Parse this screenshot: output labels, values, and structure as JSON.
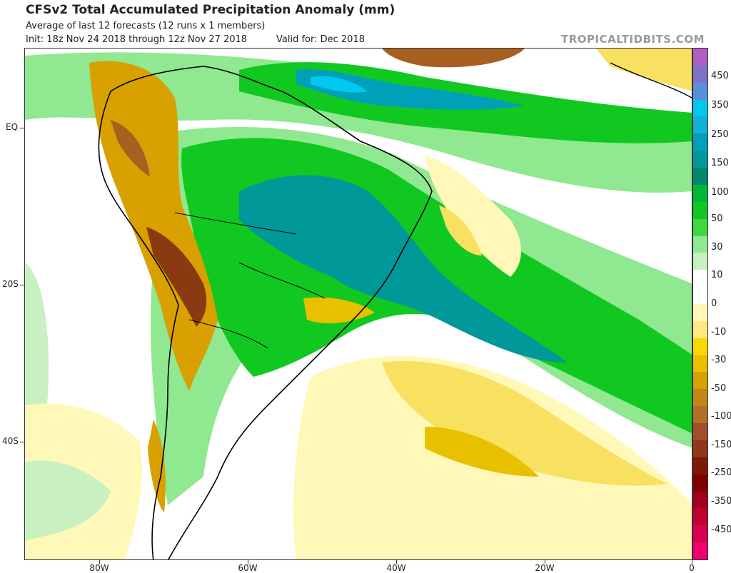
{
  "header": {
    "title": "CFSv2 Total Accumulated Precipitation Anomaly (mm)",
    "subtitle": "Average of last 12 forecasts (12 runs x 1 members)",
    "init": "Init: 18z Nov 24 2018 through 12z Nov 27 2018",
    "valid": "Valid for: Dec 2018",
    "brand": "TROPICALTIDBITS.COM"
  },
  "axes": {
    "y_labels": [
      "EQ",
      "20S",
      "40S"
    ],
    "x_labels": [
      "80W",
      "60W",
      "40W",
      "20W",
      "0"
    ]
  },
  "colorbar": {
    "labels": [
      "450",
      "350",
      "250",
      "150",
      "100",
      "50",
      "30",
      "10",
      "0",
      "-10",
      "-30",
      "-50",
      "-100",
      "-150",
      "-250",
      "-350",
      "-450"
    ],
    "colors": [
      "#b060c0",
      "#8070c8",
      "#5a90d8",
      "#00c8f0",
      "#10b0d8",
      "#00a0b8",
      "#009898",
      "#008870",
      "#00b838",
      "#10c820",
      "#40d840",
      "#90e890",
      "#c8f0c0",
      "#ffffff",
      "#ffffff",
      "#fff8b8",
      "#ffe880",
      "#f8d800",
      "#e8c000",
      "#d8a000",
      "#c08818",
      "#b07028",
      "#a05028",
      "#903818",
      "#801808",
      "#800000",
      "#a00020",
      "#c00030",
      "#d80050",
      "#f00070"
    ]
  },
  "map": {
    "background": "#ffffff",
    "anomaly_colors": {
      "wet_high": "#00c8f0",
      "wet_mid": "#00a0b8",
      "wet": "#009880",
      "green": "#00b838",
      "light_green": "#40d840",
      "pale_green": "#90e890",
      "pale_yellow": "#fff8b8",
      "yellow": "#f8e060",
      "gold": "#e8c000",
      "orange": "#d8a000",
      "brown": "#a86020",
      "dark_brown": "#8a3a10"
    }
  }
}
